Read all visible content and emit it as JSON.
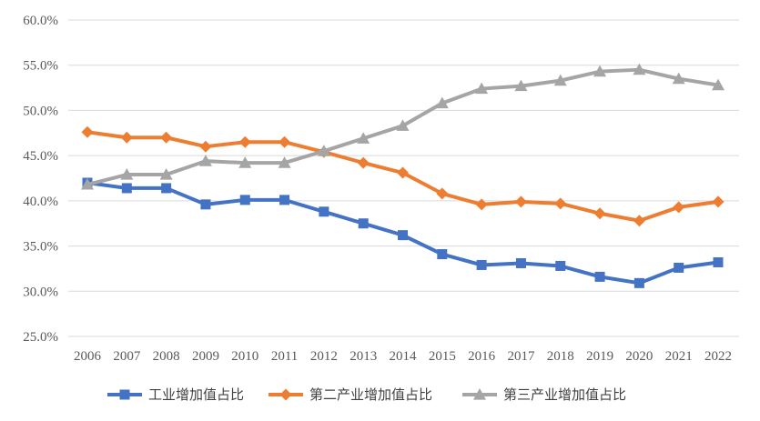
{
  "chart_data": {
    "type": "line",
    "title": "",
    "xlabel": "",
    "ylabel": "",
    "categories": [
      "2006",
      "2007",
      "2008",
      "2009",
      "2010",
      "2011",
      "2012",
      "2013",
      "2014",
      "2015",
      "2016",
      "2017",
      "2018",
      "2019",
      "2020",
      "2021",
      "2022"
    ],
    "ylim": [
      25.0,
      60.0
    ],
    "yticks": [
      "25.0%",
      "30.0%",
      "35.0%",
      "40.0%",
      "45.0%",
      "50.0%",
      "55.0%",
      "60.0%"
    ],
    "grid": true,
    "legend_position": "bottom",
    "series": [
      {
        "name": "工业增加值占比",
        "color": "#4472c4",
        "marker": "square",
        "values": [
          42.0,
          41.4,
          41.4,
          39.6,
          40.1,
          40.1,
          38.8,
          37.5,
          36.2,
          34.1,
          32.9,
          33.1,
          32.8,
          31.6,
          30.9,
          32.6,
          33.2
        ]
      },
      {
        "name": "第二产业增加值占比",
        "color": "#ed7d31",
        "marker": "diamond",
        "values": [
          47.6,
          47.0,
          47.0,
          46.0,
          46.5,
          46.5,
          45.4,
          44.2,
          43.1,
          40.8,
          39.6,
          39.9,
          39.7,
          38.6,
          37.8,
          39.3,
          39.9
        ]
      },
      {
        "name": "第三产业增加值占比",
        "color": "#a5a5a5",
        "marker": "triangle",
        "values": [
          41.8,
          42.9,
          42.9,
          44.4,
          44.2,
          44.2,
          45.5,
          46.9,
          48.3,
          50.8,
          52.4,
          52.7,
          53.3,
          54.3,
          54.5,
          53.5,
          52.8
        ]
      }
    ]
  }
}
